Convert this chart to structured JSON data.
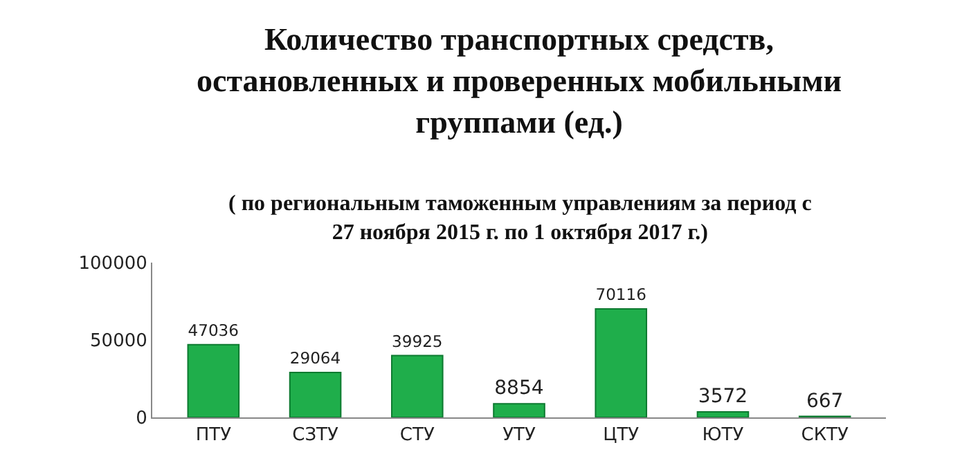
{
  "chart_data": {
    "type": "bar",
    "title": "Количество транспортных средств, остановленных и проверенных мобильными группами (ед.)",
    "subtitle": "( по региональным таможенным управлениям за период с 27 ноября 2015 г. по 1 октября 2017 г.)",
    "categories": [
      "ПТУ",
      "СЗТУ",
      "СТУ",
      "УТУ",
      "ЦТУ",
      "ЮТУ",
      "СКТУ"
    ],
    "values": [
      47036,
      29064,
      39925,
      8854,
      70116,
      3572,
      667
    ],
    "color": "#1fae4b",
    "ylim": [
      0,
      100000
    ],
    "yticks": [
      0,
      50000,
      100000
    ],
    "grid": false,
    "data_labels": true
  }
}
